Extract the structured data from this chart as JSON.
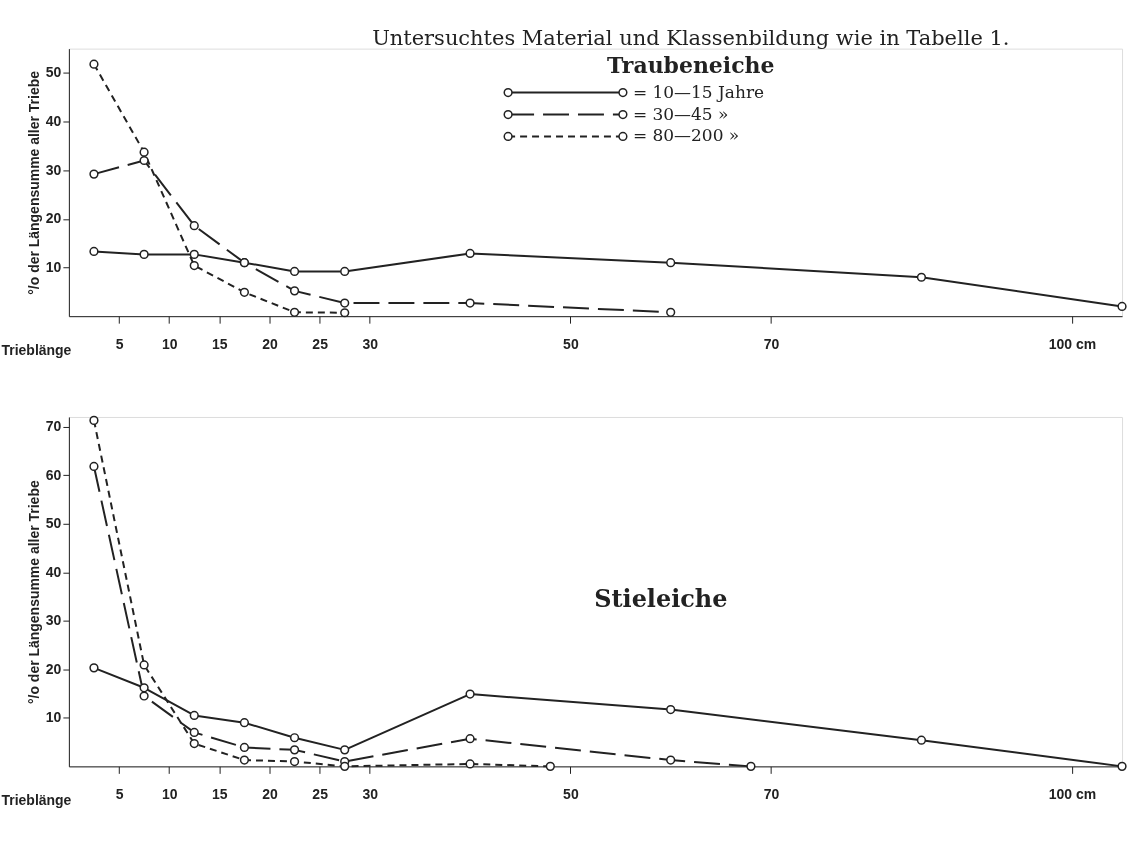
{
  "chart_data": [
    {
      "type": "line",
      "title": "Untersuchtes Material und Klassenbildung wie in Tabelle 1.",
      "subtitle": "Traubeneiche",
      "xlabel": "Trieblänge",
      "ylabel": "°/o der Längensumme aller Triebe",
      "xlim": [
        0,
        105
      ],
      "xticks": [
        5,
        10,
        15,
        20,
        25,
        30,
        50,
        70,
        {
          "value": 100,
          "label": "100 cm"
        }
      ],
      "ylim": [
        0,
        55
      ],
      "yticks": [
        10,
        20,
        30,
        40,
        50
      ],
      "grid": false,
      "legend": "top",
      "marker": "circle",
      "series": [
        {
          "name": "= 10—15 Jahre",
          "color": "#222222",
          "line_style": "solid",
          "x": [
            2.5,
            7.5,
            12.5,
            17.5,
            22.5,
            27.5,
            40,
            60,
            85,
            105
          ],
          "values": [
            13.3,
            12.7,
            12.7,
            11.0,
            9.2,
            9.2,
            12.9,
            11.0,
            8.0,
            2.0
          ]
        },
        {
          "name": "= 30—45 »",
          "color": "#222222",
          "line_style": "dashed",
          "x": [
            2.5,
            7.5,
            12.5,
            17.5,
            22.5,
            27.5,
            40,
            60
          ],
          "values": [
            29.2,
            32.0,
            18.6,
            11.0,
            5.2,
            2.7,
            2.7,
            0.8
          ]
        },
        {
          "name": "= 80—200 »",
          "color": "#222222",
          "line_style": "dotted",
          "x": [
            2.5,
            7.5,
            12.5,
            17.5,
            22.5,
            27.5
          ],
          "values": [
            51.8,
            33.7,
            10.4,
            4.9,
            0.8,
            0.7
          ]
        }
      ]
    },
    {
      "type": "line",
      "title": "Stieleiche",
      "xlabel": "Trieblänge",
      "ylabel": "°/o der Längensumme aller Triebe",
      "xlim": [
        0,
        105
      ],
      "xticks": [
        5,
        10,
        15,
        20,
        25,
        30,
        50,
        70,
        {
          "value": 100,
          "label": "100 cm"
        }
      ],
      "ylim": [
        0,
        72
      ],
      "yticks": [
        10,
        20,
        30,
        40,
        50,
        60,
        70
      ],
      "grid": false,
      "marker": "circle",
      "series": [
        {
          "color": "#222222",
          "line_style": "solid",
          "x": [
            2.5,
            7.5,
            12.5,
            17.5,
            22.5,
            27.5,
            40,
            60,
            85,
            105
          ],
          "values": [
            20.3,
            16.2,
            10.5,
            9.0,
            5.9,
            3.4,
            14.9,
            11.7,
            5.4,
            0
          ]
        },
        {
          "color": "#222222",
          "line_style": "dashed",
          "x": [
            2.5,
            7.5,
            12.5,
            17.5,
            22.5,
            27.5,
            40,
            60,
            68
          ],
          "values": [
            61.8,
            14.5,
            7.0,
            3.9,
            3.4,
            1.0,
            5.7,
            1.3,
            0
          ]
        },
        {
          "color": "#222222",
          "line_style": "dotted",
          "x": [
            2.5,
            7.5,
            12.5,
            17.5,
            22.5,
            27.5,
            40,
            48
          ],
          "values": [
            71.3,
            20.9,
            4.7,
            1.3,
            1.0,
            0,
            0.5,
            0
          ]
        }
      ]
    }
  ]
}
